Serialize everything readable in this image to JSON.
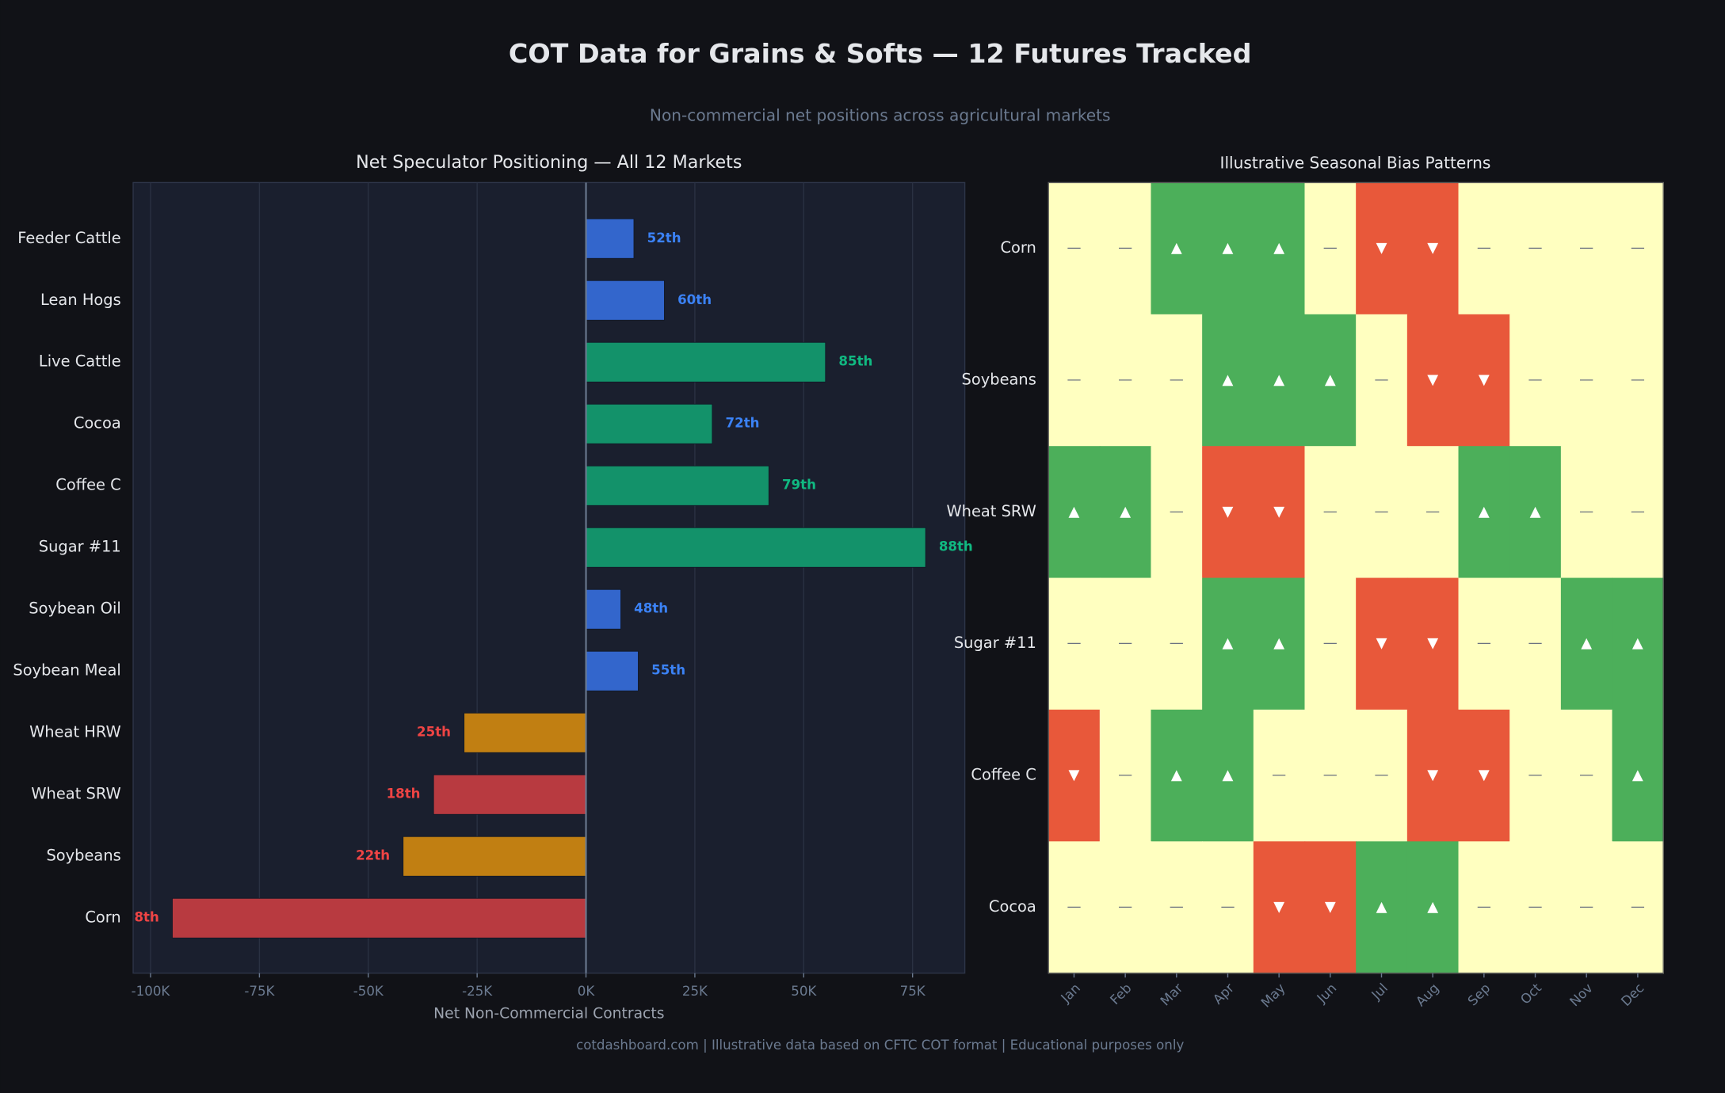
{
  "title": "COT Data for Grains & Softs — 12 Futures Tracked",
  "subtitle": "Non-commercial net positions across agricultural markets",
  "footer": "cotdashboard.com  |  Illustrative data based on CFTC COT format  |  Educational purposes only",
  "chart_data": [
    {
      "type": "hbar",
      "title": "Net Speculator Positioning — All 12 Markets",
      "xlabel": "Net Non-Commercial Contracts",
      "categories": [
        "Feeder Cattle",
        "Lean Hogs",
        "Live Cattle",
        "Cocoa",
        "Coffee C",
        "Sugar #11",
        "Soybean Oil",
        "Soybean Meal",
        "Wheat HRW",
        "Wheat SRW",
        "Soybeans",
        "Corn"
      ],
      "values": [
        11000,
        18000,
        55000,
        29000,
        42000,
        78000,
        8000,
        12000,
        -28000,
        -35000,
        -42000,
        -95000
      ],
      "labels": [
        "52th",
        "60th",
        "85th",
        "72th",
        "79th",
        "88th",
        "48th",
        "55th",
        "25th",
        "18th",
        "22th",
        "8th"
      ],
      "colors": [
        "#3366cc",
        "#3366cc",
        "#13926a",
        "#13926a",
        "#13926a",
        "#13926a",
        "#3366cc",
        "#3366cc",
        "#c17f12",
        "#b83a40",
        "#c17f12",
        "#b83a40"
      ],
      "label_colors": [
        "#3b82f6",
        "#3b82f6",
        "#10b981",
        "#3b82f6",
        "#10b981",
        "#10b981",
        "#3b82f6",
        "#3b82f6",
        "#ef4444",
        "#ef4444",
        "#ef4444",
        "#ef4444"
      ],
      "xlim": [
        -104000,
        87000
      ],
      "xticks": [
        {
          "value": -100000,
          "label": "-100K"
        },
        {
          "value": -75000,
          "label": "-75K"
        },
        {
          "value": -50000,
          "label": "-50K"
        },
        {
          "value": -25000,
          "label": "-25K"
        },
        {
          "value": 0,
          "label": "0K"
        },
        {
          "value": 25000,
          "label": "25K"
        },
        {
          "value": 50000,
          "label": "50K"
        },
        {
          "value": 75000,
          "label": "75K"
        }
      ],
      "grid": true
    },
    {
      "type": "heatmap",
      "title": "Illustrative Seasonal Bias Patterns",
      "categories": [
        "Jan",
        "Feb",
        "Mar",
        "Apr",
        "May",
        "Jun",
        "Jul",
        "Aug",
        "Sep",
        "Oct",
        "Nov",
        "Dec"
      ],
      "rows": [
        "Corn",
        "Soybeans",
        "Wheat SRW",
        "Sugar #11",
        "Coffee C",
        "Cocoa"
      ],
      "values": [
        [
          0,
          0,
          1,
          1,
          1,
          0,
          -1,
          -1,
          0,
          0,
          0,
          0
        ],
        [
          0,
          0,
          0,
          1,
          1,
          1,
          0,
          -1,
          -1,
          0,
          0,
          0
        ],
        [
          1,
          1,
          0,
          -1,
          -1,
          0,
          0,
          0,
          1,
          1,
          0,
          0
        ],
        [
          0,
          0,
          0,
          1,
          1,
          0,
          -1,
          -1,
          0,
          0,
          1,
          1
        ],
        [
          -1,
          0,
          1,
          1,
          0,
          0,
          0,
          -1,
          -1,
          0,
          0,
          1
        ],
        [
          0,
          0,
          0,
          0,
          -1,
          -1,
          1,
          1,
          0,
          0,
          0,
          0
        ]
      ],
      "value_labels": [
        [
          "—",
          "—",
          "▲",
          "▲",
          "▲",
          "—",
          "▼",
          "▼",
          "—",
          "—",
          "—",
          "—"
        ],
        [
          "—",
          "—",
          "—",
          "▲",
          "▲",
          "▲",
          "—",
          "▼",
          "▼",
          "—",
          "—",
          "—"
        ],
        [
          "▲",
          "▲",
          "—",
          "▼",
          "▼",
          "—",
          "—",
          "—",
          "▲",
          "▲",
          "—",
          "—"
        ],
        [
          "—",
          "—",
          "—",
          "▲",
          "▲",
          "—",
          "▼",
          "▼",
          "—",
          "—",
          "▲",
          "▲"
        ],
        [
          "▼",
          "—",
          "▲",
          "▲",
          "—",
          "—",
          "—",
          "▼",
          "▼",
          "—",
          "—",
          "▲"
        ],
        [
          "—",
          "—",
          "—",
          "—",
          "▼",
          "▼",
          "▲",
          "▲",
          "—",
          "—",
          "—",
          "—"
        ]
      ],
      "colors": {
        "up": "#4caf5a",
        "down": "#e8583a",
        "neutral": "#ffffc0"
      }
    }
  ]
}
